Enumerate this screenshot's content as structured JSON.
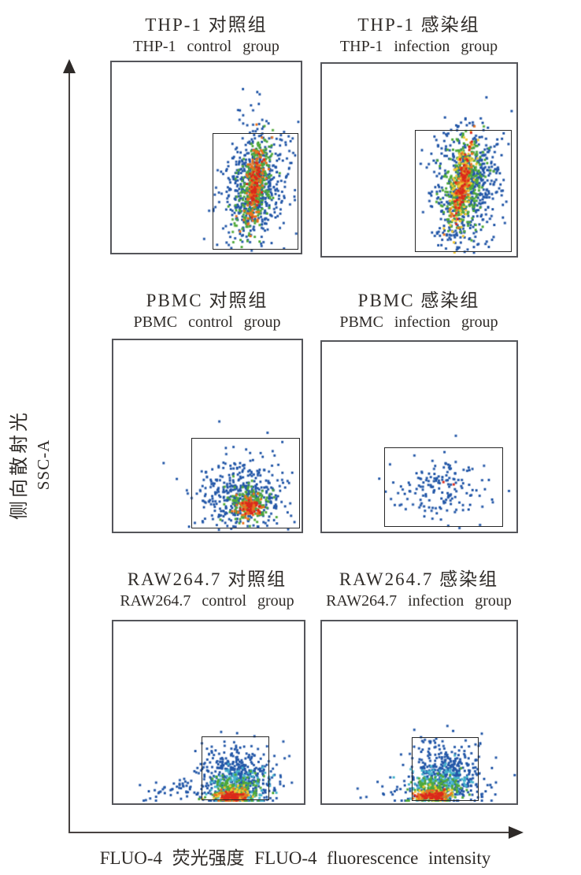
{
  "chart_data": {
    "type": "scatter",
    "description": "Six flow-cytometry pseudocolor density dot plots (2 columns x 3 rows). Dot color encodes local event density from low to high: blue, cyan, green, yellow, orange, red. A rectangular analysis gate is drawn in each plot. Axes are unlabeled arrow axes without tick marks.",
    "xlabel": "FLUO-4 荧光强度 FLUO-4 fluorescence intensity",
    "ylabel_zh": "侧向散射光",
    "ylabel_en": "SSC-A",
    "axis_ticks": "none",
    "palette": {
      "blue": "#2458a8",
      "cyan": "#45b4cc",
      "green": "#4fa93a",
      "yellow": "#f1c733",
      "orange": "#e9731f",
      "red": "#da291c"
    },
    "density_palette_low_to_high": [
      "#2458a8",
      "#45b4cc",
      "#4fa93a",
      "#f1c733",
      "#e9731f",
      "#da291c"
    ],
    "panels": [
      {
        "id": "thp1-control",
        "title_zh": "THP-1 对照组",
        "title_en": "THP-1 control group",
        "gate": {
          "x": 0.535,
          "y": 0.37,
          "w": 0.452,
          "h": 0.615
        },
        "clusters": [
          {
            "color": "blue",
            "count": 620,
            "cx": 0.75,
            "cy": 0.655,
            "sdx": 0.085,
            "sdy": 0.155,
            "rot": 8
          },
          {
            "color": "green",
            "count": 300,
            "cx": 0.755,
            "cy": 0.645,
            "sdx": 0.042,
            "sdy": 0.125,
            "rot": 8
          },
          {
            "color": "orange",
            "count": 150,
            "cx": 0.757,
            "cy": 0.645,
            "sdx": 0.024,
            "sdy": 0.1,
            "rot": 8
          },
          {
            "color": "red",
            "count": 55,
            "cx": 0.757,
            "cy": 0.64,
            "sdx": 0.015,
            "sdy": 0.07,
            "rot": 8
          }
        ]
      },
      {
        "id": "thp1-infection",
        "title_zh": "THP-1 感染组",
        "title_en": "THP-1 infection group",
        "gate": {
          "x": 0.476,
          "y": 0.345,
          "w": 0.5,
          "h": 0.635
        },
        "clusters": [
          {
            "color": "blue",
            "count": 600,
            "cx": 0.74,
            "cy": 0.64,
            "sdx": 0.09,
            "sdy": 0.15,
            "rot": 10
          },
          {
            "color": "green",
            "count": 300,
            "cx": 0.725,
            "cy": 0.63,
            "sdx": 0.05,
            "sdy": 0.13,
            "rot": 10
          },
          {
            "color": "yellow",
            "count": 130,
            "cx": 0.722,
            "cy": 0.625,
            "sdx": 0.03,
            "sdy": 0.115,
            "rot": 10
          },
          {
            "color": "orange",
            "count": 90,
            "cx": 0.722,
            "cy": 0.625,
            "sdx": 0.022,
            "sdy": 0.105,
            "rot": 10
          },
          {
            "color": "red",
            "count": 60,
            "cx": 0.722,
            "cy": 0.62,
            "sdx": 0.016,
            "sdy": 0.09,
            "rot": 10
          }
        ]
      },
      {
        "id": "pbmc-control",
        "title_zh": "PBMC 对照组",
        "title_en": "PBMC control group",
        "gate": {
          "x": 0.415,
          "y": 0.51,
          "w": 0.575,
          "h": 0.475
        },
        "clusters": [
          {
            "color": "blue",
            "count": 430,
            "cx": 0.68,
            "cy": 0.82,
            "sdx": 0.125,
            "sdy": 0.1
          },
          {
            "color": "green",
            "count": 150,
            "cx": 0.72,
            "cy": 0.86,
            "sdx": 0.055,
            "sdy": 0.045
          },
          {
            "color": "orange",
            "count": 90,
            "cx": 0.727,
            "cy": 0.868,
            "sdx": 0.035,
            "sdy": 0.03
          },
          {
            "color": "red",
            "count": 35,
            "cx": 0.73,
            "cy": 0.87,
            "sdx": 0.022,
            "sdy": 0.02
          }
        ]
      },
      {
        "id": "pbmc-infection",
        "title_zh": "PBMC 感染组",
        "title_en": "PBMC infection group",
        "gate": {
          "x": 0.32,
          "y": 0.555,
          "w": 0.612,
          "h": 0.42
        },
        "clusters": [
          {
            "color": "blue",
            "count": 165,
            "cx": 0.61,
            "cy": 0.78,
            "sdx": 0.115,
            "sdy": 0.085
          },
          {
            "color": "red",
            "count": 2,
            "cx": 0.625,
            "cy": 0.735,
            "sdx": 0.03,
            "sdy": 0.015
          }
        ]
      },
      {
        "id": "raw264-control",
        "title_zh": "RAW264.7 对照组",
        "title_en": "RAW264.7 control group",
        "gate": {
          "x": 0.463,
          "y": 0.63,
          "w": 0.354,
          "h": 0.353
        },
        "clusters": [
          {
            "color": "blue",
            "count": 70,
            "cx": 0.38,
            "cy": 0.935,
            "sdx": 0.14,
            "sdy": 0.035,
            "ymax": 0.985
          },
          {
            "color": "blue",
            "count": 480,
            "cx": 0.655,
            "cy": 0.86,
            "sdx": 0.1,
            "sdy": 0.085,
            "rot": 15,
            "ymax": 0.985
          },
          {
            "color": "cyan",
            "count": 160,
            "cx": 0.645,
            "cy": 0.905,
            "sdx": 0.075,
            "sdy": 0.055,
            "ymax": 0.985
          },
          {
            "color": "green",
            "count": 170,
            "cx": 0.64,
            "cy": 0.93,
            "sdx": 0.065,
            "sdy": 0.04,
            "ymax": 0.985
          },
          {
            "color": "yellow",
            "count": 60,
            "cx": 0.628,
            "cy": 0.952,
            "sdx": 0.05,
            "sdy": 0.022,
            "ymax": 0.985
          },
          {
            "color": "orange",
            "count": 70,
            "cx": 0.622,
            "cy": 0.958,
            "sdx": 0.045,
            "sdy": 0.018,
            "ymax": 0.985
          },
          {
            "color": "red",
            "count": 55,
            "cx": 0.618,
            "cy": 0.963,
            "sdx": 0.035,
            "sdy": 0.012,
            "ymax": 0.985
          }
        ]
      },
      {
        "id": "raw264-infection",
        "title_zh": "RAW264.7 感染组",
        "title_en": "RAW264.7 infection group",
        "gate": {
          "x": 0.46,
          "y": 0.635,
          "w": 0.345,
          "h": 0.35
        },
        "clusters": [
          {
            "color": "blue",
            "count": 25,
            "cx": 0.4,
            "cy": 0.93,
            "sdx": 0.1,
            "sdy": 0.04,
            "ymax": 0.985
          },
          {
            "color": "blue",
            "count": 430,
            "cx": 0.645,
            "cy": 0.845,
            "sdx": 0.1,
            "sdy": 0.09,
            "rot": 18,
            "ymax": 0.985
          },
          {
            "color": "cyan",
            "count": 150,
            "cx": 0.605,
            "cy": 0.898,
            "sdx": 0.08,
            "sdy": 0.055,
            "ymax": 0.985
          },
          {
            "color": "green",
            "count": 150,
            "cx": 0.588,
            "cy": 0.928,
            "sdx": 0.065,
            "sdy": 0.038,
            "ymax": 0.985
          },
          {
            "color": "yellow",
            "count": 55,
            "cx": 0.578,
            "cy": 0.95,
            "sdx": 0.05,
            "sdy": 0.02,
            "ymax": 0.985
          },
          {
            "color": "orange",
            "count": 65,
            "cx": 0.572,
            "cy": 0.957,
            "sdx": 0.045,
            "sdy": 0.016,
            "ymax": 0.985
          },
          {
            "color": "red",
            "count": 50,
            "cx": 0.568,
            "cy": 0.962,
            "sdx": 0.032,
            "sdy": 0.012,
            "ymax": 0.985
          }
        ]
      }
    ]
  }
}
